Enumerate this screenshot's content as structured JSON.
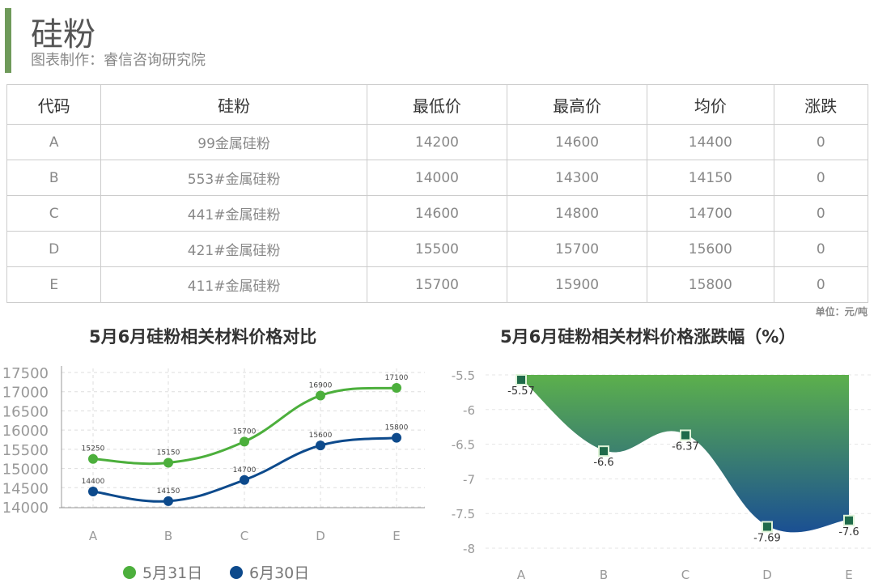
{
  "header": {
    "title": "硅粉",
    "subtitle": "图表制作：睿信咨询研究院"
  },
  "table": {
    "columns": [
      "代码",
      "硅粉",
      "最低价",
      "最高价",
      "均价",
      "涨跌"
    ],
    "rows": [
      [
        "A",
        "99金属硅粉",
        "14200",
        "14600",
        "14400",
        "0"
      ],
      [
        "B",
        "553#金属硅粉",
        "14000",
        "14300",
        "14150",
        "0"
      ],
      [
        "C",
        "441#金属硅粉",
        "14600",
        "14800",
        "14700",
        "0"
      ],
      [
        "D",
        "421#金属硅粉",
        "15500",
        "15700",
        "15600",
        "0"
      ],
      [
        "E",
        "411#金属硅粉",
        "15700",
        "15900",
        "15800",
        "0"
      ]
    ],
    "unit": "单位：元/吨"
  },
  "colors": {
    "accent": "#6f9a5a",
    "green": "#4caf3c",
    "blue": "#0d4a8c"
  },
  "chart_data": [
    {
      "type": "line",
      "title": "5月6月硅粉相关材料价格对比",
      "categories": [
        "A",
        "B",
        "C",
        "D",
        "E"
      ],
      "ylim": [
        14000,
        17500
      ],
      "yticks": [
        14000,
        14500,
        15000,
        15500,
        16000,
        16500,
        17000,
        17500
      ],
      "grid": true,
      "legend": "bottom",
      "series": [
        {
          "name": "5月31日",
          "values": [
            15250,
            15150,
            15700,
            16900,
            17100
          ],
          "color": "#4caf3c"
        },
        {
          "name": "6月30日",
          "values": [
            14400,
            14150,
            14700,
            15600,
            15800
          ],
          "color": "#0d4a8c"
        }
      ]
    },
    {
      "type": "area",
      "title": "5月6月硅粉相关材料价格涨跌幅（%）",
      "categories": [
        "A",
        "B",
        "C",
        "D",
        "E"
      ],
      "ylim": [
        -8,
        -5.5
      ],
      "yticks": [
        -5.5,
        -6,
        -6.5,
        -7,
        -7.5,
        -8
      ],
      "grid": true,
      "values": [
        -5.57,
        -6.6,
        -6.37,
        -7.69,
        -7.6
      ],
      "colors": [
        "#5cb04c",
        "#1a4f93"
      ]
    }
  ]
}
